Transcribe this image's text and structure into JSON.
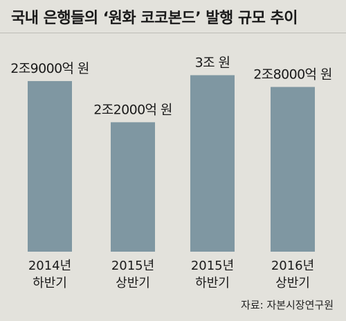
{
  "title": "국내 은행들의 ‘원화 코코본드’ 발행 규모 추이",
  "source": "자료: 자본시장연구원",
  "colors": {
    "bar": "#7f97a2",
    "background": "#e3e2dc"
  },
  "chart_data": {
    "type": "bar",
    "categories": [
      [
        "2014년",
        "하반기"
      ],
      [
        "2015년",
        "상반기"
      ],
      [
        "2015년",
        "하반기"
      ],
      [
        "2016년",
        "상반기"
      ]
    ],
    "values": [
      2.9,
      2.2,
      3.0,
      2.8
    ],
    "value_labels": [
      "2조9000억 원",
      "2조2000억 원",
      "3조 원",
      "2조8000억 원"
    ],
    "unit": "조 원",
    "ylim": [
      0,
      3.3
    ],
    "grid": false,
    "legend": "none"
  }
}
